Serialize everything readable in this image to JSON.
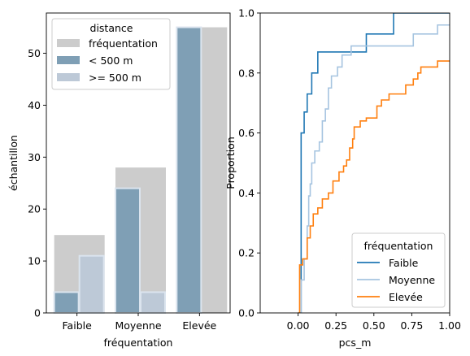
{
  "chart_data": [
    {
      "type": "bar",
      "xlabel": "fréquentation",
      "ylabel": "échantillon",
      "categories": [
        "Faible",
        "Moyenne",
        "Elevée"
      ],
      "ylim": [
        0,
        57.75
      ],
      "yticks": [
        0,
        10,
        20,
        30,
        40,
        50
      ],
      "series": [
        {
          "name": "fréquentation",
          "values": [
            15,
            28,
            55
          ],
          "color": "#cccccc"
        },
        {
          "name": "< 500 m",
          "values": [
            4,
            24,
            55
          ],
          "color": "#7f9fb5"
        },
        {
          "name": ">= 500 m",
          "values": [
            11,
            4,
            0
          ],
          "color": "#bdc9d7"
        }
      ],
      "legend": {
        "title": "distance",
        "placement": "top-left",
        "entries": [
          "fréquentation",
          "< 500 m",
          ">= 500 m"
        ]
      },
      "grid": false
    },
    {
      "type": "line",
      "subtype": "ecdf",
      "xlabel": "pcs_m",
      "ylabel": "Proportion",
      "xlim": [
        -0.25,
        1.0
      ],
      "ylim": [
        0,
        1.0
      ],
      "xticks": [
        "0.00",
        "0.25",
        "0.50",
        "0.75",
        "1.00"
      ],
      "yticks": [
        "0.0",
        "0.2",
        "0.4",
        "0.6",
        "0.8",
        "1.0"
      ],
      "series": [
        {
          "name": "Faible",
          "color": "#1f77b4",
          "x": [
            0.0,
            0.02,
            0.04,
            0.06,
            0.09,
            0.13,
            0.45,
            0.63
          ],
          "y": [
            0.0,
            0.6,
            0.67,
            0.73,
            0.8,
            0.87,
            0.93,
            1.0
          ]
        },
        {
          "name": "Moyenne",
          "color": "#a6c4e0",
          "x": [
            0.0,
            0.02,
            0.04,
            0.06,
            0.07,
            0.08,
            0.09,
            0.11,
            0.14,
            0.16,
            0.18,
            0.2,
            0.22,
            0.26,
            0.29,
            0.35,
            0.45,
            0.76,
            0.92,
            0.97
          ],
          "y": [
            0.0,
            0.11,
            0.18,
            0.29,
            0.39,
            0.43,
            0.5,
            0.54,
            0.57,
            0.64,
            0.68,
            0.75,
            0.79,
            0.82,
            0.86,
            0.89,
            0.89,
            0.93,
            0.96,
            0.96
          ]
        },
        {
          "name": "Elevée",
          "color": "#ff7f0e",
          "x": [
            0.0,
            0.01,
            0.03,
            0.06,
            0.08,
            0.1,
            0.13,
            0.16,
            0.2,
            0.23,
            0.27,
            0.3,
            0.32,
            0.34,
            0.36,
            0.37,
            0.39,
            0.41,
            0.45,
            0.52,
            0.55,
            0.6,
            0.71,
            0.76,
            0.79,
            0.81,
            0.87,
            0.92
          ],
          "y": [
            0.0,
            0.16,
            0.18,
            0.25,
            0.29,
            0.33,
            0.35,
            0.38,
            0.4,
            0.44,
            0.47,
            0.49,
            0.51,
            0.55,
            0.58,
            0.62,
            0.62,
            0.64,
            0.65,
            0.69,
            0.71,
            0.73,
            0.76,
            0.78,
            0.8,
            0.82,
            0.82,
            0.84
          ]
        }
      ],
      "legend": {
        "title": "fréquentation",
        "placement": "bottom-right",
        "entries": [
          "Faible",
          "Moyenne",
          "Elevée"
        ]
      },
      "grid": false
    }
  ]
}
